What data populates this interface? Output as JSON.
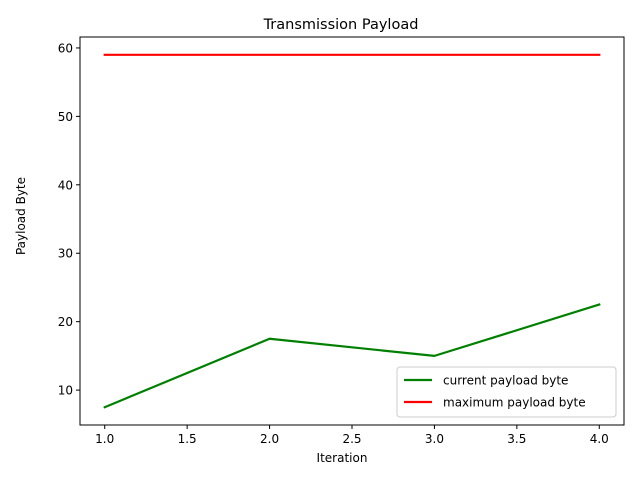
{
  "chart_data": {
    "type": "line",
    "title": "Transmission Payload",
    "xlabel": "Iteration",
    "ylabel": "Payload Byte",
    "x": [
      1.0,
      2.0,
      3.0,
      4.0
    ],
    "xlim": [
      0.85,
      4.15
    ],
    "ylim": [
      4.9,
      61.6
    ],
    "xticks": [
      1.0,
      1.5,
      2.0,
      2.5,
      3.0,
      3.5,
      4.0
    ],
    "xtick_labels": [
      "1.0",
      "1.5",
      "2.0",
      "2.5",
      "3.0",
      "3.5",
      "4.0"
    ],
    "yticks": [
      10,
      20,
      30,
      40,
      50,
      60
    ],
    "ytick_labels": [
      "10",
      "20",
      "30",
      "40",
      "50",
      "60"
    ],
    "grid": false,
    "legend_position": "lower-right",
    "series": [
      {
        "name": "current payload byte",
        "color": "#008000",
        "values": [
          7.5,
          17.5,
          15.0,
          22.5
        ]
      },
      {
        "name": "maximum payload byte",
        "color": "#ff0000",
        "values": [
          59.0,
          59.0,
          59.0,
          59.0
        ]
      }
    ]
  }
}
